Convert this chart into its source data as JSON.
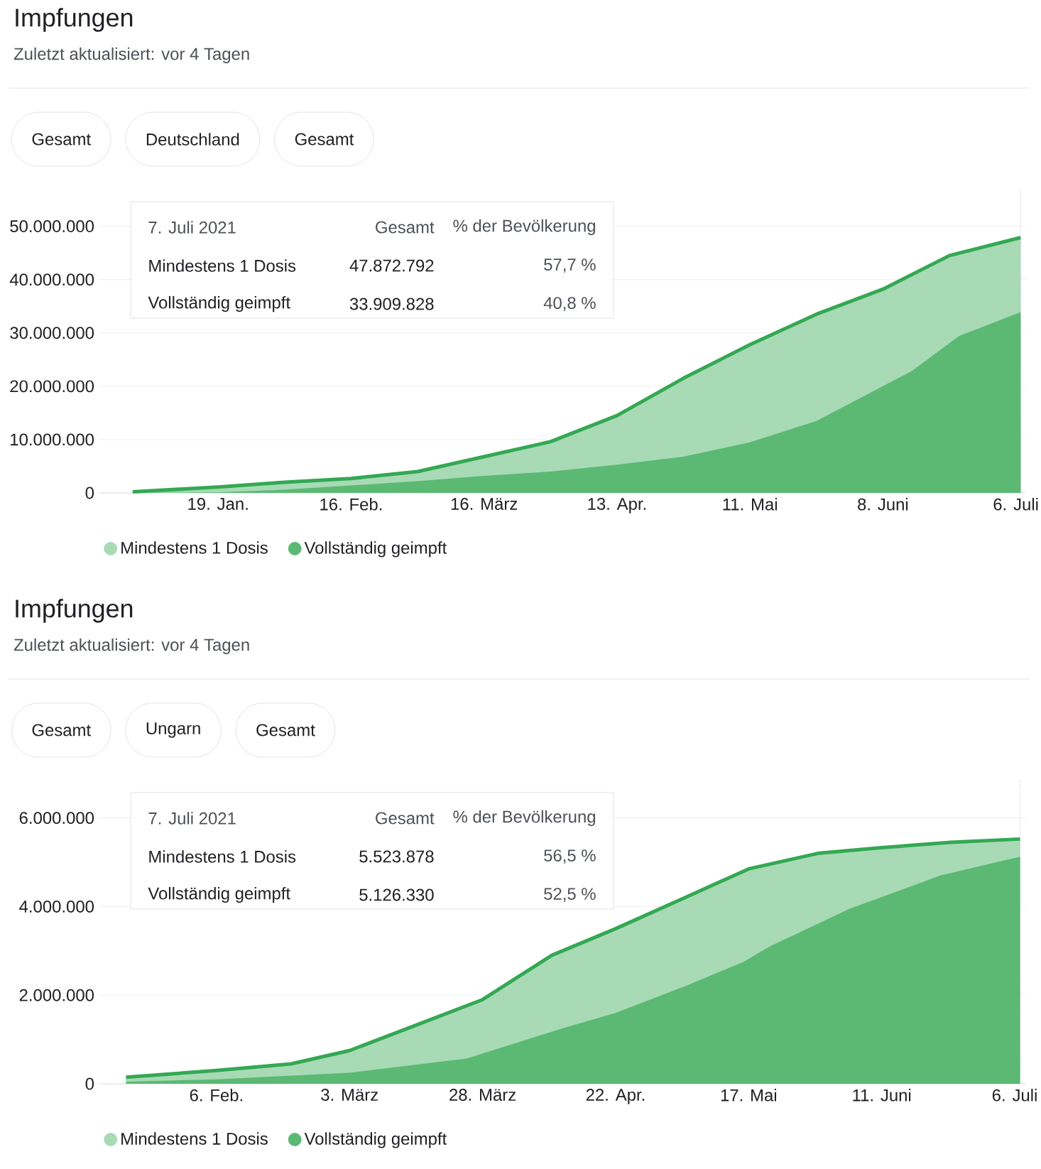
{
  "chart_data": [
    {
      "type": "area",
      "title": "Impfungen",
      "subtitle": "Zuletzt aktualisiert: vor 4 Tagen",
      "annotations": [
        "Gesamt",
        "Deutschland",
        "Gesamt",
        "7. Juli 2021",
        "Gesamt",
        "% der Bevölkerung",
        "Mindestens 1 Dosis",
        "47.872.792",
        "57,7 %",
        "Vollständig geimpft",
        "33.909.828",
        "40,8 %"
      ],
      "series": [
        {
          "name": "Mindestens 1 Dosis",
          "color": "#a8dab5",
          "x": [
            "2021-01-01",
            "2021-01-19",
            "2021-02-02",
            "2021-02-16",
            "2021-03-02",
            "2021-03-16",
            "2021-03-30",
            "2021-04-13",
            "2021-04-27",
            "2021-05-11",
            "2021-05-25",
            "2021-06-08",
            "2021-06-22",
            "2021-07-07"
          ],
          "values": [
            200000,
            1100000,
            2000000,
            2700000,
            4000000,
            6800000,
            9600000,
            14500000,
            21500000,
            27800000,
            33500000,
            38200000,
            44500000,
            47872792
          ]
        },
        {
          "name": "Vollständig geimpft",
          "color": "#5bb974",
          "x": [
            "2021-01-01",
            "2021-01-19",
            "2021-02-02",
            "2021-02-16",
            "2021-03-02",
            "2021-03-16",
            "2021-03-30",
            "2021-04-13",
            "2021-04-27",
            "2021-05-11",
            "2021-05-25",
            "2021-06-08",
            "2021-06-14",
            "2021-06-24",
            "2021-07-07"
          ],
          "values": [
            0,
            100000,
            600000,
            1400000,
            2200000,
            3200000,
            4000000,
            5300000,
            6800000,
            9500000,
            13500000,
            20000000,
            22800000,
            29400000,
            33909828
          ]
        }
      ],
      "xlim": [
        "2020-12-25",
        "2021-07-08"
      ],
      "xticks": [
        {
          "value": "2021-01-19",
          "label": "19. Jan."
        },
        {
          "value": "2021-02-16",
          "label": "16. Feb."
        },
        {
          "value": "2021-03-16",
          "label": "16. März"
        },
        {
          "value": "2021-04-13",
          "label": "13. Apr."
        },
        {
          "value": "2021-05-11",
          "label": "11. Mai"
        },
        {
          "value": "2021-06-08",
          "label": "8. Juni"
        },
        {
          "value": "2021-07-06",
          "label": "6. Juli"
        }
      ],
      "ylim": [
        0,
        57000000
      ],
      "yticks": [
        0,
        {
          "value": 10000000,
          "label": "10.000.000"
        },
        {
          "value": 20000000,
          "label": "20.000.000"
        },
        {
          "value": 30000000,
          "label": "30.000.000"
        },
        {
          "value": 40000000,
          "label": "40.000.000"
        },
        {
          "value": 50000000,
          "label": "50.000.000"
        }
      ],
      "ref_lines": [
        {
          "axis": "x",
          "value": "2021-07-07",
          "line_style": "dotted",
          "color": "#9e9e9e"
        }
      ],
      "grid": "y",
      "legend": "bottom left"
    },
    {
      "type": "area",
      "title": "Impfungen",
      "subtitle": "Zuletzt aktualisiert: vor 4 Tagen",
      "annotations": [
        "Gesamt",
        "Ungarn",
        "Gesamt",
        "7. Juli 2021",
        "Gesamt",
        "% der Bevölkerung",
        "Mindestens 1 Dosis",
        "5.523.878",
        "56,5 %",
        "Vollständig geimpft",
        "5.126.330",
        "52,5 %"
      ],
      "series": [
        {
          "name": "Mindestens 1 Dosis",
          "color": "#a8dab5",
          "x": [
            "2021-01-20",
            "2021-02-06",
            "2021-02-20",
            "2021-03-03",
            "2021-03-15",
            "2021-03-28",
            "2021-04-10",
            "2021-04-22",
            "2021-05-05",
            "2021-05-17",
            "2021-05-30",
            "2021-06-11",
            "2021-06-24",
            "2021-07-07"
          ],
          "values": [
            150000,
            300000,
            450000,
            750000,
            1300000,
            1900000,
            2900000,
            3500000,
            4200000,
            4850000,
            5200000,
            5330000,
            5450000,
            5523878
          ]
        },
        {
          "name": "Vollständig geimpft",
          "color": "#5bb974",
          "x": [
            "2021-01-20",
            "2021-02-06",
            "2021-03-03",
            "2021-03-25",
            "2021-04-12",
            "2021-04-22",
            "2021-05-05",
            "2021-05-16",
            "2021-05-21",
            "2021-06-05",
            "2021-06-22",
            "2021-07-07"
          ],
          "values": [
            50000,
            100000,
            250000,
            570000,
            1250000,
            1600000,
            2200000,
            2750000,
            3100000,
            3950000,
            4700000,
            5126330
          ]
        }
      ],
      "xlim": [
        "2021-01-15",
        "2021-07-08"
      ],
      "xticks": [
        {
          "value": "2021-02-06",
          "label": "6. Feb."
        },
        {
          "value": "2021-03-03",
          "label": "3. März"
        },
        {
          "value": "2021-03-28",
          "label": "28. März"
        },
        {
          "value": "2021-04-22",
          "label": "22. Apr."
        },
        {
          "value": "2021-05-17",
          "label": "17. Mai"
        },
        {
          "value": "2021-06-11",
          "label": "11. Juni"
        },
        {
          "value": "2021-07-06",
          "label": "6. Juli"
        }
      ],
      "ylim": [
        0,
        6860000
      ],
      "yticks": [
        0,
        {
          "value": 2000000,
          "label": "2.000.000"
        },
        {
          "value": 4000000,
          "label": "4.000.000"
        },
        {
          "value": 6000000,
          "label": "6.000.000"
        }
      ],
      "ref_lines": [
        {
          "axis": "x",
          "value": "2021-07-07",
          "line_style": "dotted",
          "color": "#9e9e9e"
        }
      ],
      "grid": "y",
      "legend": "bottom left"
    }
  ]
}
